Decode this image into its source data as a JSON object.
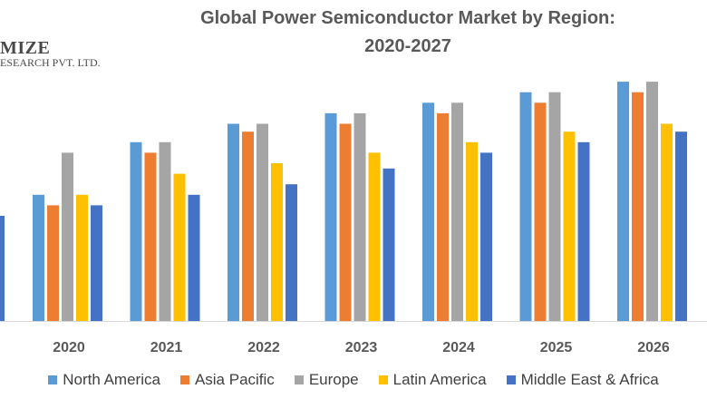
{
  "logo": {
    "name": "MIZE",
    "sub": "ESEARCH PVT. LTD."
  },
  "chart_data": {
    "type": "bar",
    "title": "Global Power Semiconductor Market by Region:\n2020-2027",
    "categories": [
      "2020",
      "2021",
      "2022",
      "2023",
      "2024",
      "2025",
      "2026"
    ],
    "series": [
      {
        "name": "North America",
        "color": "#5b9bd5",
        "values": [
          2.4,
          3.4,
          3.75,
          3.95,
          4.15,
          4.35,
          4.55
        ]
      },
      {
        "name": "Asia Pacific",
        "color": "#ed7d31",
        "values": [
          2.2,
          3.2,
          3.6,
          3.75,
          3.95,
          4.15,
          4.35
        ]
      },
      {
        "name": "Europe",
        "color": "#a5a5a5",
        "values": [
          3.2,
          3.4,
          3.75,
          3.95,
          4.15,
          4.35,
          4.55
        ]
      },
      {
        "name": "Latin America",
        "color": "#ffc000",
        "values": [
          2.4,
          2.8,
          3.0,
          3.2,
          3.4,
          3.6,
          3.75
        ]
      },
      {
        "name": "Middle East & Africa",
        "color": "#4472c4",
        "values": [
          2.2,
          2.4,
          2.6,
          2.9,
          3.2,
          3.4,
          3.6
        ]
      }
    ],
    "partial_bar": {
      "series": "Middle East & Africa",
      "value": 2.0
    },
    "ylim": [
      0,
      5
    ],
    "grid": false,
    "legend": "bottom"
  }
}
